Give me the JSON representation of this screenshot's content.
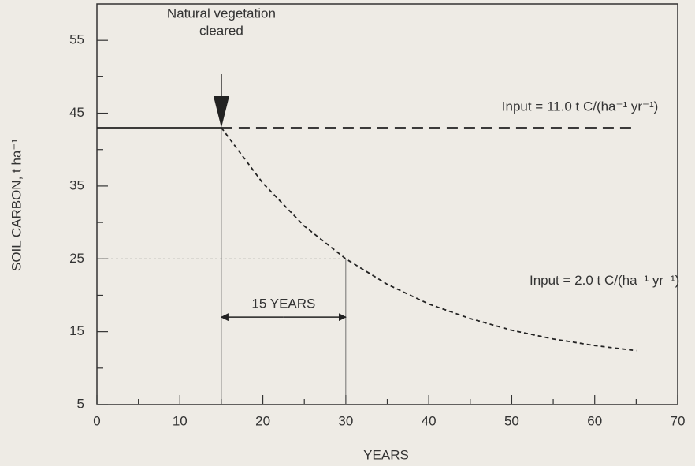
{
  "chart_data": {
    "type": "line",
    "xlabel": "YEARS",
    "ylabel": "SOIL CARBON, t ha⁻¹",
    "xlim": [
      0,
      70
    ],
    "xticks": [
      0,
      10,
      20,
      30,
      40,
      50,
      60,
      70
    ],
    "xticks_minor": [
      5,
      15,
      25,
      35,
      45,
      55,
      65
    ],
    "ylim": [
      5,
      60
    ],
    "yticks": [
      5,
      15,
      25,
      35,
      45,
      55
    ],
    "yticks_minor": [
      10,
      20,
      30,
      40,
      50
    ],
    "series": [
      {
        "color": "#222222",
        "dash": "solid",
        "x": [
          0,
          15
        ],
        "values": [
          43,
          43
        ]
      },
      {
        "name": "Input = 11.0 t C/(ha⁻¹ yr⁻¹)",
        "color": "#222222",
        "dash": "long",
        "x": [
          15,
          65
        ],
        "values": [
          43,
          43
        ]
      },
      {
        "name": "Input = 2.0 t C/(ha⁻¹ yr⁻¹)",
        "color": "#222222",
        "dash": "short",
        "x": [
          15,
          20,
          25,
          30,
          35,
          40,
          45,
          50,
          55,
          60,
          65
        ],
        "values": [
          43,
          35.4,
          29.5,
          25,
          21.5,
          18.8,
          16.8,
          15.2,
          14.0,
          13.1,
          12.4
        ]
      }
    ],
    "guides": [
      {
        "x": [
          0,
          30
        ],
        "y": [
          25,
          25
        ],
        "dash": "dot"
      },
      {
        "x": [
          15,
          15
        ],
        "y": [
          5,
          43
        ],
        "dash": "solid"
      },
      {
        "x": [
          30,
          30
        ],
        "y": [
          5,
          25
        ],
        "dash": "solid"
      }
    ],
    "annotation": {
      "text": [
        "Natural vegetation",
        "cleared"
      ],
      "x": 15,
      "y": 43
    },
    "span": {
      "label": "15 YEARS",
      "x": [
        15,
        30
      ],
      "y": 17
    }
  }
}
